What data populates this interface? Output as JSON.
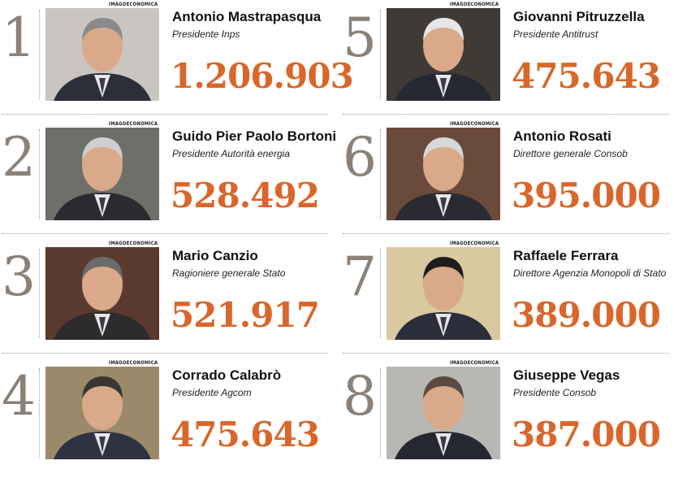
{
  "credit": "IMAGOECONOMICA",
  "entries": [
    {
      "rank": "1",
      "name": "Antonio Mastrapasqua",
      "role": "Presidente Inps",
      "amount": "1.206.903",
      "photo_bg": "#c9c6c2",
      "suit": "#2c2f3a"
    },
    {
      "rank": "2",
      "name": "Guido Pier Paolo Bortoni",
      "role": "Presidente Autorità energia",
      "amount": "528.492",
      "photo_bg": "#6f6f6a",
      "suit": "#2a2b30"
    },
    {
      "rank": "3",
      "name": "Mario Canzio",
      "role": "Ragioniere generale Stato",
      "amount": "521.917",
      "photo_bg": "#5a3a2e",
      "suit": "#2d2b2c"
    },
    {
      "rank": "4",
      "name": "Corrado Calabrò",
      "role": "Presidente Agcom",
      "amount": "475.643",
      "photo_bg": "#9a8a6a",
      "suit": "#2e3242"
    },
    {
      "rank": "5",
      "name": "Giovanni Pitruzzella",
      "role": "Presidente Antitrust",
      "amount": "475.643",
      "photo_bg": "#3f3a36",
      "suit": "#262833"
    },
    {
      "rank": "6",
      "name": "Antonio Rosati",
      "role": "Direttore generale Consob",
      "amount": "395.000",
      "photo_bg": "#6a4a3a",
      "suit": "#2a2a32"
    },
    {
      "rank": "7",
      "name": "Raffaele Ferrara",
      "role": "Direttore Agenzia Monopoli di Stato",
      "amount": "389.000",
      "photo_bg": "#d8c9a0",
      "suit": "#2b2e3a"
    },
    {
      "rank": "8",
      "name": "Giuseppe Vegas",
      "role": "Presidente Consob",
      "amount": "387.000",
      "photo_bg": "#b9b7b4",
      "suit": "#252733"
    }
  ]
}
